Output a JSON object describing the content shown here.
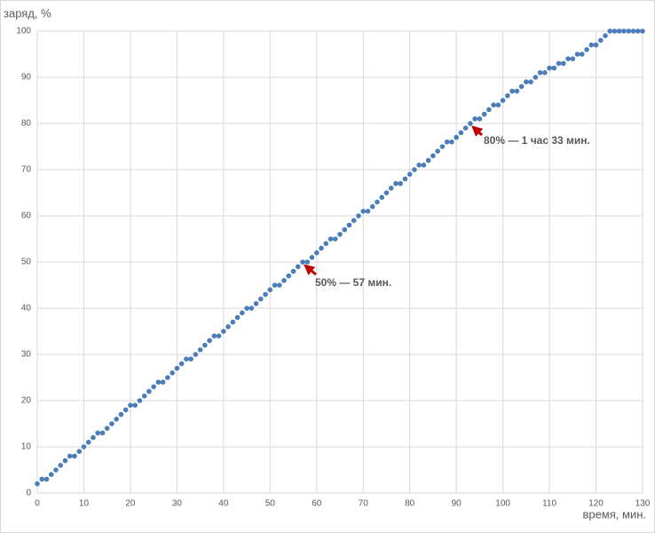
{
  "chart_data": {
    "type": "scatter",
    "y_label": "заряд, %",
    "x_label": "время, мин.",
    "annotations": [
      "50% — 57 мин.",
      "80% — 1 час 33 мин."
    ],
    "xlim": [
      0,
      130
    ],
    "xticks": [
      0,
      10,
      20,
      30,
      40,
      50,
      60,
      70,
      80,
      90,
      100,
      110,
      120,
      130
    ],
    "ylim": [
      0,
      100
    ],
    "yticks": [
      0,
      10,
      20,
      30,
      40,
      50,
      60,
      70,
      80,
      90,
      100
    ],
    "grid": true,
    "series": [
      {
        "color": "#4a7dba",
        "x": [
          0,
          1,
          2,
          3,
          4,
          5,
          6,
          7,
          8,
          9,
          10,
          11,
          12,
          13,
          14,
          15,
          16,
          17,
          18,
          19,
          20,
          21,
          22,
          23,
          24,
          25,
          26,
          27,
          28,
          29,
          30,
          31,
          32,
          33,
          34,
          35,
          36,
          37,
          38,
          39,
          40,
          41,
          42,
          43,
          44,
          45,
          46,
          47,
          48,
          49,
          50,
          51,
          52,
          53,
          54,
          55,
          56,
          57,
          58,
          59,
          60,
          61,
          62,
          63,
          64,
          65,
          66,
          67,
          68,
          69,
          70,
          71,
          72,
          73,
          74,
          75,
          76,
          77,
          78,
          79,
          80,
          81,
          82,
          83,
          84,
          85,
          86,
          87,
          88,
          89,
          90,
          91,
          92,
          93,
          94,
          95,
          96,
          97,
          98,
          99,
          100,
          101,
          102,
          103,
          104,
          105,
          106,
          107,
          108,
          109,
          110,
          111,
          112,
          113,
          114,
          115,
          116,
          117,
          118,
          119,
          120,
          121,
          122,
          123,
          124,
          125,
          126,
          127,
          128,
          129,
          130
        ],
        "values": [
          2,
          3,
          3,
          4,
          5,
          6,
          7,
          8,
          8,
          9,
          10,
          11,
          12,
          13,
          13,
          14,
          15,
          16,
          17,
          18,
          19,
          19,
          20,
          21,
          22,
          23,
          24,
          24,
          25,
          26,
          27,
          28,
          29,
          29,
          30,
          31,
          32,
          33,
          34,
          34,
          35,
          36,
          37,
          38,
          39,
          40,
          40,
          41,
          42,
          43,
          44,
          45,
          45,
          46,
          47,
          48,
          49,
          50,
          50,
          51,
          52,
          53,
          54,
          55,
          55,
          56,
          57,
          58,
          59,
          60,
          61,
          61,
          62,
          63,
          64,
          65,
          66,
          67,
          67,
          68,
          69,
          70,
          71,
          71,
          72,
          73,
          74,
          75,
          76,
          76,
          77,
          78,
          79,
          80,
          81,
          81,
          82,
          83,
          84,
          84,
          85,
          86,
          87,
          87,
          88,
          89,
          89,
          90,
          91,
          91,
          92,
          92,
          93,
          93,
          94,
          94,
          95,
          95,
          96,
          97,
          97,
          98,
          99,
          100,
          100,
          100,
          100,
          100,
          100,
          100,
          100
        ]
      }
    ]
  }
}
